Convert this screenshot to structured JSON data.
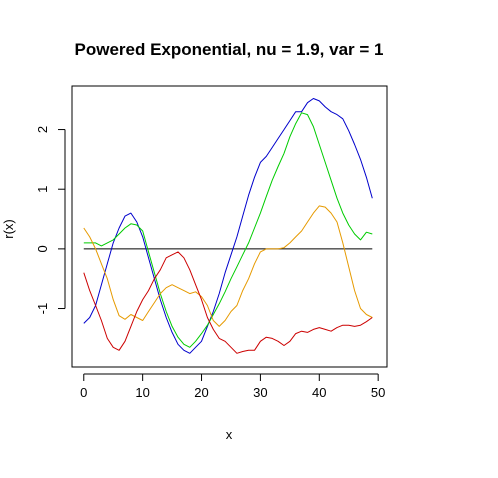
{
  "chart_data": {
    "type": "line",
    "title": "Powered Exponential, nu = 1.9, var = 1",
    "xlabel": "x",
    "ylabel": "r(x)",
    "xlim": [
      -2,
      51.5
    ],
    "ylim": [
      -1.98,
      2.73
    ],
    "x_ticks": [
      0,
      10,
      20,
      30,
      40,
      50
    ],
    "x_tick_labels": [
      "0",
      "10",
      "20",
      "30",
      "40",
      "50"
    ],
    "y_ticks": [
      -1,
      0,
      1,
      2
    ],
    "y_tick_labels": [
      "-1",
      "0",
      "1",
      "2"
    ],
    "reference_line": {
      "y": 0,
      "x_from": 0,
      "x_to": 49,
      "color": "#000000"
    },
    "grid": false,
    "legend": "none",
    "series": [
      {
        "color": "#0000cc",
        "x": [
          0,
          1,
          2,
          3,
          4,
          5,
          6,
          7,
          8,
          9,
          10,
          11,
          12,
          13,
          14,
          15,
          16,
          17,
          18,
          19,
          20,
          21,
          22,
          23,
          24,
          25,
          26,
          27,
          28,
          29,
          30,
          31,
          32,
          33,
          34,
          35,
          36,
          37,
          38,
          39,
          40,
          41,
          42,
          43,
          44,
          45,
          46,
          47,
          48,
          49
        ],
        "values": [
          -1.25,
          -1.15,
          -0.95,
          -0.6,
          -0.25,
          0.1,
          0.35,
          0.55,
          0.6,
          0.45,
          0.2,
          -0.15,
          -0.5,
          -0.85,
          -1.15,
          -1.4,
          -1.6,
          -1.7,
          -1.75,
          -1.65,
          -1.55,
          -1.3,
          -1.05,
          -0.75,
          -0.4,
          -0.1,
          0.2,
          0.55,
          0.9,
          1.2,
          1.45,
          1.55,
          1.7,
          1.85,
          2.0,
          2.15,
          2.3,
          2.3,
          2.45,
          2.52,
          2.48,
          2.38,
          2.3,
          2.25,
          2.18,
          1.98,
          1.75,
          1.5,
          1.2,
          0.85
        ]
      },
      {
        "color": "#00cc00",
        "x": [
          0,
          1,
          2,
          3,
          4,
          5,
          6,
          7,
          8,
          9,
          10,
          11,
          12,
          13,
          14,
          15,
          16,
          17,
          18,
          19,
          20,
          21,
          22,
          23,
          24,
          25,
          26,
          27,
          28,
          29,
          30,
          31,
          32,
          33,
          34,
          35,
          36,
          37,
          38,
          39,
          40,
          41,
          42,
          43,
          44,
          45,
          46,
          47,
          48,
          49
        ],
        "values": [
          0.1,
          0.1,
          0.1,
          0.05,
          0.1,
          0.15,
          0.25,
          0.35,
          0.42,
          0.4,
          0.3,
          -0.05,
          -0.4,
          -0.75,
          -1.05,
          -1.3,
          -1.48,
          -1.6,
          -1.65,
          -1.55,
          -1.42,
          -1.28,
          -1.1,
          -0.92,
          -0.72,
          -0.5,
          -0.3,
          -0.1,
          0.1,
          0.35,
          0.6,
          0.88,
          1.15,
          1.38,
          1.6,
          1.88,
          2.1,
          2.28,
          2.25,
          2.05,
          1.75,
          1.45,
          1.15,
          0.85,
          0.6,
          0.4,
          0.25,
          0.15,
          0.28,
          0.25
        ]
      },
      {
        "color": "#e69a00",
        "x": [
          0,
          1,
          2,
          3,
          4,
          5,
          6,
          7,
          8,
          9,
          10,
          11,
          12,
          13,
          14,
          15,
          16,
          17,
          18,
          19,
          20,
          21,
          22,
          23,
          24,
          25,
          26,
          27,
          28,
          29,
          30,
          31,
          32,
          33,
          34,
          35,
          36,
          37,
          38,
          39,
          40,
          41,
          42,
          43,
          44,
          45,
          46,
          47,
          48,
          49
        ],
        "values": [
          0.35,
          0.2,
          0.0,
          -0.25,
          -0.5,
          -0.85,
          -1.12,
          -1.18,
          -1.1,
          -1.15,
          -1.2,
          -1.05,
          -0.9,
          -0.75,
          -0.65,
          -0.6,
          -0.65,
          -0.7,
          -0.75,
          -0.72,
          -0.8,
          -0.95,
          -1.2,
          -1.3,
          -1.2,
          -1.05,
          -0.95,
          -0.7,
          -0.5,
          -0.25,
          -0.05,
          0.0,
          0.0,
          0.0,
          0.02,
          0.1,
          0.2,
          0.3,
          0.45,
          0.6,
          0.72,
          0.7,
          0.6,
          0.45,
          0.1,
          -0.3,
          -0.7,
          -1.0,
          -1.1,
          -1.15
        ]
      },
      {
        "color": "#cc0000",
        "x": [
          0,
          1,
          2,
          3,
          4,
          5,
          6,
          7,
          8,
          9,
          10,
          11,
          12,
          13,
          14,
          15,
          16,
          17,
          18,
          19,
          20,
          21,
          22,
          23,
          24,
          25,
          26,
          27,
          28,
          29,
          30,
          31,
          32,
          33,
          34,
          35,
          36,
          37,
          38,
          39,
          40,
          41,
          42,
          43,
          44,
          45,
          46,
          47,
          48,
          49
        ],
        "values": [
          -0.4,
          -0.7,
          -0.95,
          -1.2,
          -1.5,
          -1.65,
          -1.7,
          -1.55,
          -1.3,
          -1.05,
          -0.85,
          -0.7,
          -0.5,
          -0.35,
          -0.15,
          -0.1,
          -0.05,
          -0.15,
          -0.35,
          -0.6,
          -0.85,
          -1.15,
          -1.35,
          -1.5,
          -1.55,
          -1.65,
          -1.75,
          -1.72,
          -1.7,
          -1.7,
          -1.55,
          -1.48,
          -1.5,
          -1.55,
          -1.62,
          -1.55,
          -1.42,
          -1.38,
          -1.4,
          -1.35,
          -1.32,
          -1.35,
          -1.38,
          -1.32,
          -1.28,
          -1.28,
          -1.3,
          -1.28,
          -1.22,
          -1.15
        ]
      }
    ]
  }
}
